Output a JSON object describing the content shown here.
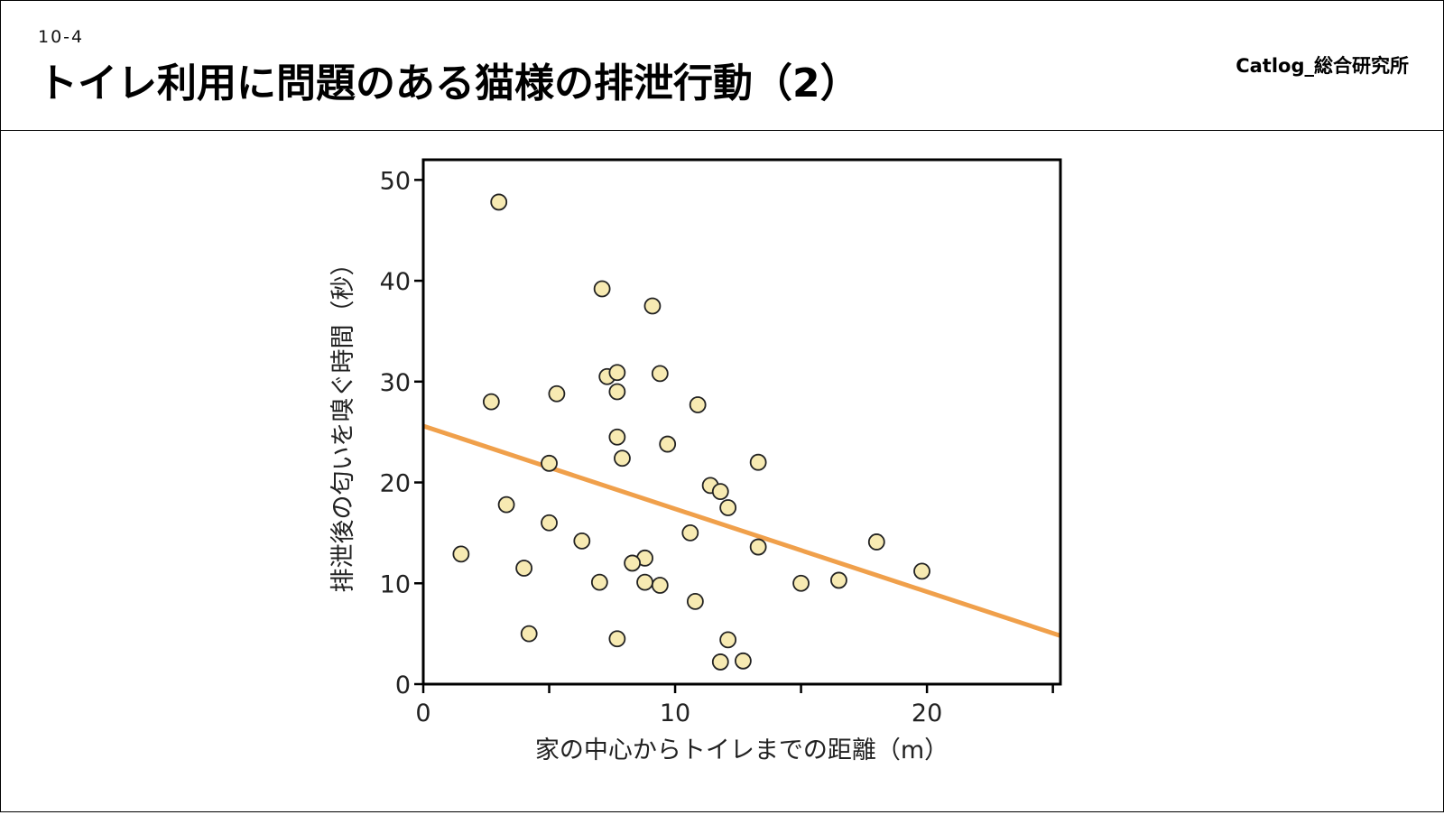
{
  "header": {
    "section_number": "10-4",
    "title": "トイレ利用に問題のある猫様の排泄行動（2）",
    "brand": "Catlog_総合研究所"
  },
  "colors": {
    "marker_fill": "#f7eab2",
    "marker_stroke": "#222222",
    "trend_line": "#f0a04b"
  },
  "chart_data": {
    "type": "scatter",
    "xlabel": "家の中心からトイレまでの距離（m）",
    "ylabel": "排泄後の匂いを嗅ぐ時間（秒）",
    "xlim": [
      0,
      25.3
    ],
    "ylim": [
      0,
      52
    ],
    "x_ticks": [
      0,
      5,
      10,
      15,
      20,
      25
    ],
    "x_tick_labels": [
      "0",
      "",
      "10",
      "",
      "20",
      ""
    ],
    "y_ticks": [
      0,
      10,
      20,
      30,
      40,
      50
    ],
    "y_tick_labels": [
      "0",
      "10",
      "20",
      "30",
      "40",
      "50"
    ],
    "grid": false,
    "points": [
      {
        "x": 3.0,
        "y": 47.8
      },
      {
        "x": 7.1,
        "y": 39.2
      },
      {
        "x": 9.1,
        "y": 37.5
      },
      {
        "x": 7.3,
        "y": 30.5
      },
      {
        "x": 7.7,
        "y": 30.9
      },
      {
        "x": 9.4,
        "y": 30.8
      },
      {
        "x": 7.7,
        "y": 29.0
      },
      {
        "x": 5.3,
        "y": 28.8
      },
      {
        "x": 2.7,
        "y": 28.0
      },
      {
        "x": 10.9,
        "y": 27.7
      },
      {
        "x": 7.7,
        "y": 24.5
      },
      {
        "x": 9.7,
        "y": 23.8
      },
      {
        "x": 7.9,
        "y": 22.4
      },
      {
        "x": 5.0,
        "y": 21.9
      },
      {
        "x": 13.3,
        "y": 22.0
      },
      {
        "x": 11.4,
        "y": 19.7
      },
      {
        "x": 11.8,
        "y": 19.1
      },
      {
        "x": 3.3,
        "y": 17.8
      },
      {
        "x": 12.1,
        "y": 17.5
      },
      {
        "x": 5.0,
        "y": 16.0
      },
      {
        "x": 10.6,
        "y": 15.0
      },
      {
        "x": 6.3,
        "y": 14.2
      },
      {
        "x": 18.0,
        "y": 14.1
      },
      {
        "x": 13.3,
        "y": 13.6
      },
      {
        "x": 1.5,
        "y": 12.9
      },
      {
        "x": 8.8,
        "y": 12.5
      },
      {
        "x": 8.3,
        "y": 12.0
      },
      {
        "x": 4.0,
        "y": 11.5
      },
      {
        "x": 19.8,
        "y": 11.2
      },
      {
        "x": 16.5,
        "y": 10.3
      },
      {
        "x": 7.0,
        "y": 10.1
      },
      {
        "x": 8.8,
        "y": 10.1
      },
      {
        "x": 15.0,
        "y": 10.0
      },
      {
        "x": 9.4,
        "y": 9.8
      },
      {
        "x": 10.8,
        "y": 8.2
      },
      {
        "x": 4.2,
        "y": 5.0
      },
      {
        "x": 7.7,
        "y": 4.5
      },
      {
        "x": 12.1,
        "y": 4.4
      },
      {
        "x": 12.7,
        "y": 2.3
      },
      {
        "x": 11.8,
        "y": 2.2
      }
    ],
    "trend_line": {
      "x": [
        0,
        25.3
      ],
      "y": [
        25.6,
        4.8
      ]
    }
  }
}
